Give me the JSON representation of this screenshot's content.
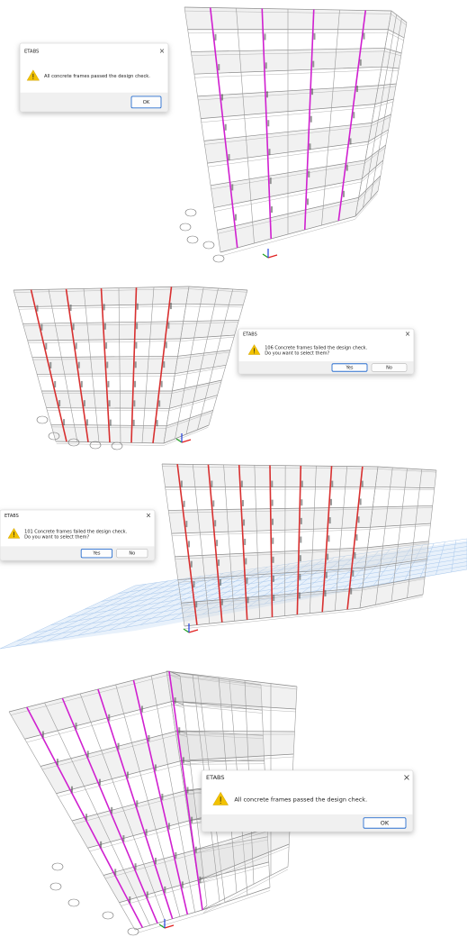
{
  "panels": [
    {
      "dialog": {
        "title": "ETABS",
        "close": "×",
        "message": [
          "All concrete frames passed the design check."
        ],
        "buttons": [
          "OK"
        ]
      }
    },
    {
      "dialog": {
        "title": "ETABS",
        "close": "×",
        "message": [
          "106 Concrete frames failed the design check.",
          "Do you want to select them?"
        ],
        "buttons": [
          "Yes",
          "No"
        ]
      }
    },
    {
      "dialog": {
        "title": "ETABS",
        "close": "×",
        "message": [
          "101 Concrete frames failed the design check.",
          "Do you want to select them?"
        ],
        "buttons": [
          "Yes",
          "No"
        ]
      }
    },
    {
      "dialog": {
        "title": "ETABS",
        "close": "×",
        "message": [
          "All concrete frames passed the design check."
        ],
        "buttons": [
          "OK"
        ]
      }
    }
  ]
}
